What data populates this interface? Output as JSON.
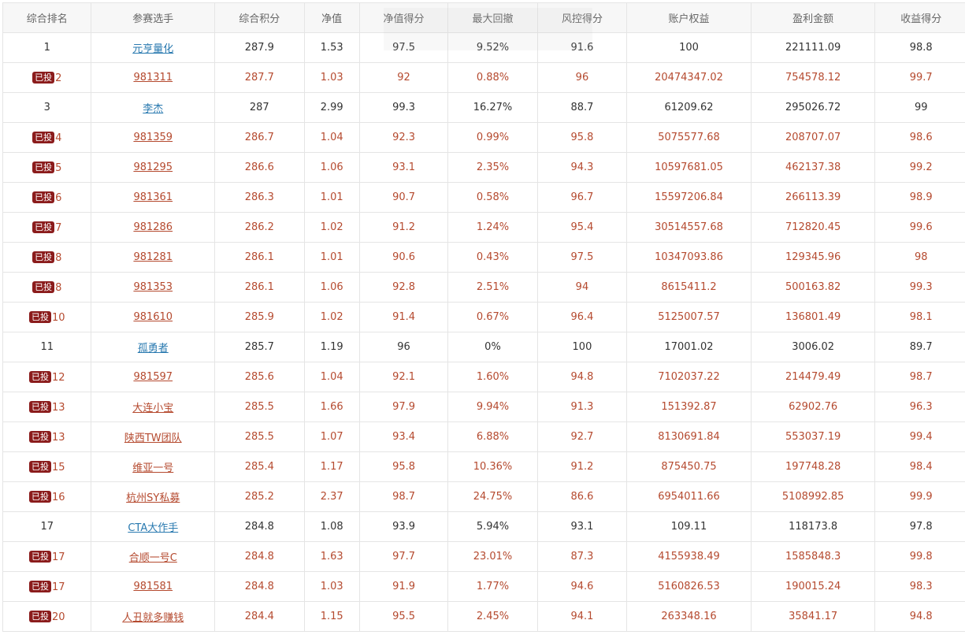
{
  "headers": [
    "综合排名",
    "参赛选手",
    "综合积分",
    "净值",
    "净值得分",
    "最大回撤",
    "风控得分",
    "账户权益",
    "盈利金额",
    "收益得分"
  ],
  "badge_text": "已投",
  "colors": {
    "invested_text": "#b54a2f",
    "normal_link": "#2a7ab0",
    "badge_bg": "#8b1c1c"
  },
  "rows": [
    {
      "rank": "1",
      "name": "元亨量化",
      "score": "287.9",
      "nav": "1.53",
      "nav_score": "97.5",
      "drawdown": "9.52%",
      "risk_score": "91.6",
      "equity": "100",
      "profit": "221111.09",
      "return_score": "98.8",
      "invested": false
    },
    {
      "rank": "2",
      "name": "981311",
      "score": "287.7",
      "nav": "1.03",
      "nav_score": "92",
      "drawdown": "0.88%",
      "risk_score": "96",
      "equity": "20474347.02",
      "profit": "754578.12",
      "return_score": "99.7",
      "invested": true
    },
    {
      "rank": "3",
      "name": "李杰",
      "score": "287",
      "nav": "2.99",
      "nav_score": "99.3",
      "drawdown": "16.27%",
      "risk_score": "88.7",
      "equity": "61209.62",
      "profit": "295026.72",
      "return_score": "99",
      "invested": false
    },
    {
      "rank": "4",
      "name": "981359",
      "score": "286.7",
      "nav": "1.04",
      "nav_score": "92.3",
      "drawdown": "0.99%",
      "risk_score": "95.8",
      "equity": "5075577.68",
      "profit": "208707.07",
      "return_score": "98.6",
      "invested": true
    },
    {
      "rank": "5",
      "name": "981295",
      "score": "286.6",
      "nav": "1.06",
      "nav_score": "93.1",
      "drawdown": "2.35%",
      "risk_score": "94.3",
      "equity": "10597681.05",
      "profit": "462137.38",
      "return_score": "99.2",
      "invested": true
    },
    {
      "rank": "6",
      "name": "981361",
      "score": "286.3",
      "nav": "1.01",
      "nav_score": "90.7",
      "drawdown": "0.58%",
      "risk_score": "96.7",
      "equity": "15597206.84",
      "profit": "266113.39",
      "return_score": "98.9",
      "invested": true
    },
    {
      "rank": "7",
      "name": "981286",
      "score": "286.2",
      "nav": "1.02",
      "nav_score": "91.2",
      "drawdown": "1.24%",
      "risk_score": "95.4",
      "equity": "30514557.68",
      "profit": "712820.45",
      "return_score": "99.6",
      "invested": true
    },
    {
      "rank": "8",
      "name": "981281",
      "score": "286.1",
      "nav": "1.01",
      "nav_score": "90.6",
      "drawdown": "0.43%",
      "risk_score": "97.5",
      "equity": "10347093.86",
      "profit": "129345.96",
      "return_score": "98",
      "invested": true
    },
    {
      "rank": "8",
      "name": "981353",
      "score": "286.1",
      "nav": "1.06",
      "nav_score": "92.8",
      "drawdown": "2.51%",
      "risk_score": "94",
      "equity": "8615411.2",
      "profit": "500163.82",
      "return_score": "99.3",
      "invested": true
    },
    {
      "rank": "10",
      "name": "981610",
      "score": "285.9",
      "nav": "1.02",
      "nav_score": "91.4",
      "drawdown": "0.67%",
      "risk_score": "96.4",
      "equity": "5125007.57",
      "profit": "136801.49",
      "return_score": "98.1",
      "invested": true
    },
    {
      "rank": "11",
      "name": "孤勇者",
      "score": "285.7",
      "nav": "1.19",
      "nav_score": "96",
      "drawdown": "0%",
      "risk_score": "100",
      "equity": "17001.02",
      "profit": "3006.02",
      "return_score": "89.7",
      "invested": false
    },
    {
      "rank": "12",
      "name": "981597",
      "score": "285.6",
      "nav": "1.04",
      "nav_score": "92.1",
      "drawdown": "1.60%",
      "risk_score": "94.8",
      "equity": "7102037.22",
      "profit": "214479.49",
      "return_score": "98.7",
      "invested": true
    },
    {
      "rank": "13",
      "name": "大连小宝",
      "score": "285.5",
      "nav": "1.66",
      "nav_score": "97.9",
      "drawdown": "9.94%",
      "risk_score": "91.3",
      "equity": "151392.87",
      "profit": "62902.76",
      "return_score": "96.3",
      "invested": true
    },
    {
      "rank": "13",
      "name": "陕西TW团队",
      "score": "285.5",
      "nav": "1.07",
      "nav_score": "93.4",
      "drawdown": "6.88%",
      "risk_score": "92.7",
      "equity": "8130691.84",
      "profit": "553037.19",
      "return_score": "99.4",
      "invested": true
    },
    {
      "rank": "15",
      "name": "维亚一号",
      "score": "285.4",
      "nav": "1.17",
      "nav_score": "95.8",
      "drawdown": "10.36%",
      "risk_score": "91.2",
      "equity": "875450.75",
      "profit": "197748.28",
      "return_score": "98.4",
      "invested": true
    },
    {
      "rank": "16",
      "name": "杭州SY私募",
      "score": "285.2",
      "nav": "2.37",
      "nav_score": "98.7",
      "drawdown": "24.75%",
      "risk_score": "86.6",
      "equity": "6954011.66",
      "profit": "5108992.85",
      "return_score": "99.9",
      "invested": true
    },
    {
      "rank": "17",
      "name": "CTA大作手",
      "score": "284.8",
      "nav": "1.08",
      "nav_score": "93.9",
      "drawdown": "5.94%",
      "risk_score": "93.1",
      "equity": "109.11",
      "profit": "118173.8",
      "return_score": "97.8",
      "invested": false
    },
    {
      "rank": "17",
      "name": "合顺一号C",
      "score": "284.8",
      "nav": "1.63",
      "nav_score": "97.7",
      "drawdown": "23.01%",
      "risk_score": "87.3",
      "equity": "4155938.49",
      "profit": "1585848.3",
      "return_score": "99.8",
      "invested": true
    },
    {
      "rank": "17",
      "name": "981581",
      "score": "284.8",
      "nav": "1.03",
      "nav_score": "91.9",
      "drawdown": "1.77%",
      "risk_score": "94.6",
      "equity": "5160826.53",
      "profit": "190015.24",
      "return_score": "98.3",
      "invested": true
    },
    {
      "rank": "20",
      "name": "人丑就多赚钱",
      "score": "284.4",
      "nav": "1.15",
      "nav_score": "95.5",
      "drawdown": "2.45%",
      "risk_score": "94.1",
      "equity": "263348.16",
      "profit": "35841.17",
      "return_score": "94.8",
      "invested": true
    }
  ]
}
